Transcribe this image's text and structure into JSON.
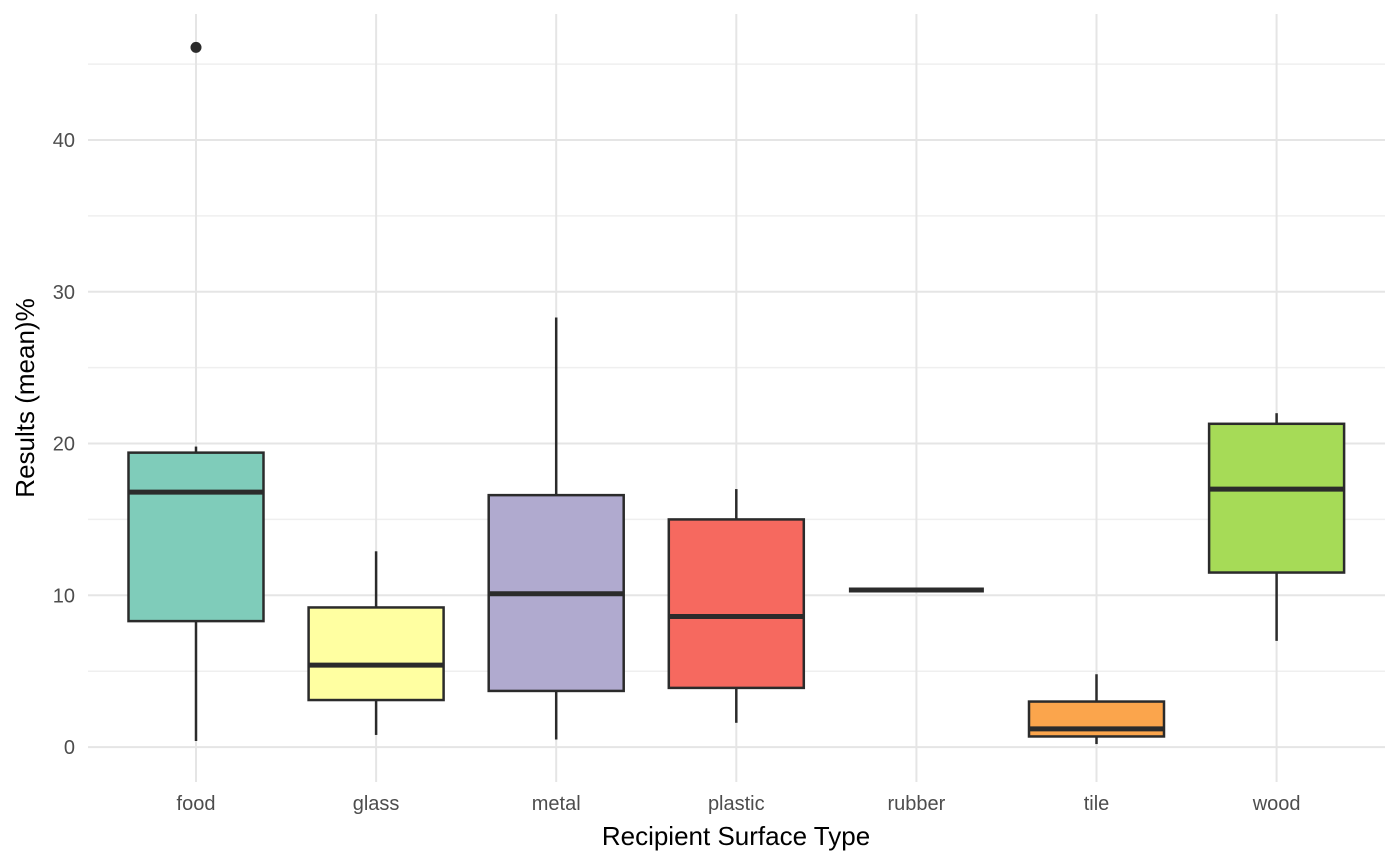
{
  "chart_data": {
    "type": "boxplot",
    "xlabel": "Recipient Surface Type",
    "ylabel": "Results (mean)%",
    "ylim": [
      -2.3,
      48.3
    ],
    "y_ticks": [
      0,
      10,
      20,
      30,
      40
    ],
    "y_tick_labels": [
      "0",
      "10",
      "20",
      "30",
      "40"
    ],
    "grid": true,
    "legend": "none",
    "categories": [
      "food",
      "glass",
      "metal",
      "plastic",
      "rubber",
      "tile",
      "wood"
    ],
    "boxes": [
      {
        "category": "food",
        "min": 0.4,
        "q1": 8.3,
        "median": 16.8,
        "q3": 19.4,
        "max": 19.8,
        "outliers": [
          46.1
        ],
        "color": "#7fccba"
      },
      {
        "category": "glass",
        "min": 0.8,
        "q1": 3.1,
        "median": 5.4,
        "q3": 9.2,
        "max": 12.9,
        "outliers": [],
        "color": "#ffffa1"
      },
      {
        "category": "metal",
        "min": 0.5,
        "q1": 3.7,
        "median": 10.1,
        "q3": 16.6,
        "max": 28.3,
        "outliers": [],
        "color": "#b0aacf"
      },
      {
        "category": "plastic",
        "min": 1.6,
        "q1": 3.9,
        "median": 8.6,
        "q3": 15.0,
        "max": 17.0,
        "outliers": [],
        "color": "#f6695f"
      },
      {
        "category": "rubber",
        "min": 10.35,
        "q1": 10.35,
        "median": 10.35,
        "q3": 10.35,
        "max": 10.35,
        "outliers": [],
        "color": "#7fb1d3"
      },
      {
        "category": "tile",
        "min": 0.2,
        "q1": 0.7,
        "median": 1.2,
        "q3": 3.0,
        "max": 4.8,
        "outliers": [],
        "color": "#fba54c"
      },
      {
        "category": "wood",
        "min": 7.0,
        "q1": 11.5,
        "median": 17.0,
        "q3": 21.3,
        "max": 22.0,
        "outliers": [],
        "color": "#a6db57"
      }
    ]
  }
}
